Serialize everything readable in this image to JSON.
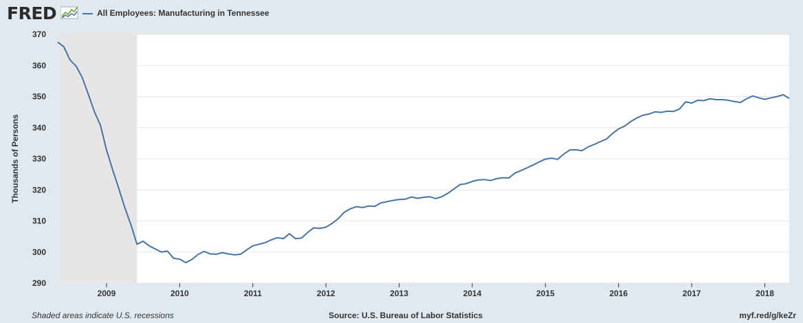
{
  "header": {
    "logo_text": "FRED",
    "logo_icon": "fred-chart-icon",
    "legend_label": "All Employees: Manufacturing in Tennessee"
  },
  "footer": {
    "recession_note": "Shaded areas indicate U.S. recessions",
    "source": "Source: U.S. Bureau of Labor Statistics",
    "short_url": "myf.red/g/keZr"
  },
  "colors": {
    "series": "#4572a7",
    "recession": "#e6e6e6",
    "plot_bg": "#ffffff",
    "page_bg": "#e1e9f0",
    "grid": "#e5e5e5"
  },
  "chart_data": {
    "type": "line",
    "title": "",
    "xlabel": "",
    "ylabel": "Thousands of Persons",
    "ylim": [
      290,
      370
    ],
    "yticks": [
      290,
      300,
      310,
      320,
      330,
      340,
      350,
      360,
      370
    ],
    "xlim": [
      "2008-05",
      "2018-05"
    ],
    "xticks": [
      "2009",
      "2010",
      "2011",
      "2012",
      "2013",
      "2014",
      "2015",
      "2016",
      "2017",
      "2018"
    ],
    "grid": true,
    "recessions": [
      {
        "start": "2008-05",
        "end": "2009-06"
      }
    ],
    "series": [
      {
        "name": "All Employees: Manufacturing in Tennessee",
        "start": "2008-05",
        "frequency": "monthly",
        "values": [
          367.5,
          366.0,
          361.8,
          359.8,
          356.2,
          350.8,
          345.2,
          340.8,
          332.8,
          326.5,
          320.5,
          314.3,
          308.8,
          302.5,
          303.5,
          302.0,
          301.0,
          300.0,
          300.3,
          298.0,
          297.7,
          296.6,
          297.6,
          299.2,
          300.2,
          299.4,
          299.3,
          299.8,
          299.4,
          299.1,
          299.3,
          300.7,
          302.0,
          302.5,
          303.0,
          303.9,
          304.6,
          304.3,
          305.9,
          304.3,
          304.5,
          306.3,
          307.8,
          307.6,
          308.0,
          309.2,
          310.7,
          312.8,
          313.9,
          314.6,
          314.3,
          314.8,
          314.7,
          315.8,
          316.2,
          316.6,
          316.9,
          317.0,
          317.7,
          317.3,
          317.6,
          317.8,
          317.2,
          317.8,
          318.9,
          320.3,
          321.7,
          322.0,
          322.7,
          323.2,
          323.3,
          323.0,
          323.6,
          323.9,
          323.8,
          325.4,
          326.2,
          327.1,
          328.0,
          329.0,
          329.9,
          330.2,
          329.8,
          331.5,
          332.8,
          332.9,
          332.6,
          333.8,
          334.6,
          335.5,
          336.3,
          338.1,
          339.6,
          340.5,
          342.0,
          343.1,
          344.0,
          344.4,
          345.1,
          344.9,
          345.3,
          345.2,
          346.0,
          348.3,
          347.9,
          348.8,
          348.7,
          349.3,
          349.0,
          349.0,
          348.8,
          348.4,
          348.1,
          349.3,
          350.2,
          349.6,
          349.1,
          349.6,
          350.0,
          350.6,
          349.4
        ]
      }
    ]
  }
}
